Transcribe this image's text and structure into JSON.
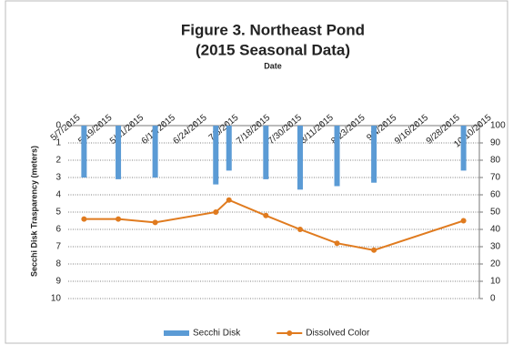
{
  "chart_data": {
    "type": "combo",
    "title": "Figure 3. Northeast Pond",
    "subtitle": "(2015 Seasonal Data)",
    "x_label": "Date",
    "y_label": "Secchi Disk Trasparency (meters)",
    "x": [
      "5/13/2015",
      "5/26/2015",
      "6/9/2015",
      "7/2/2015",
      "7/7/2015",
      "7/21/2015",
      "8/3/2015",
      "8/17/2015",
      "8/31/2015",
      "10/4/2015"
    ],
    "xlim": [
      "5/7/2015",
      "10/10/2015"
    ],
    "xticks": [
      "5/7/2015",
      "5/19/2015",
      "5/31/2015",
      "6/12/2015",
      "6/24/2015",
      "7/6/2015",
      "7/18/2015",
      "7/30/2015",
      "8/11/2015",
      "8/23/2015",
      "9/4/2015",
      "9/16/2015",
      "9/28/2015",
      "10/10/2015"
    ],
    "ylim": [
      0,
      10
    ],
    "y_reversed": true,
    "yticks": [
      0,
      1,
      2,
      3,
      4,
      5,
      6,
      7,
      8,
      9,
      10
    ],
    "y2lim": [
      0,
      100
    ],
    "y2ticks": [
      0,
      10,
      20,
      30,
      40,
      50,
      60,
      70,
      80,
      90,
      100
    ],
    "grid": true,
    "legend": "bottom",
    "series": [
      {
        "name": "Secchi Disk",
        "type": "bar",
        "color": "#5b9bd5",
        "values": [
          3.0,
          3.1,
          3.0,
          3.4,
          2.6,
          3.1,
          3.7,
          3.5,
          3.3,
          2.6
        ]
      },
      {
        "name": "Dissolved Color",
        "type": "line",
        "axis": "y2",
        "color": "#e07b1f",
        "values": [
          46,
          46,
          44,
          50,
          57,
          48,
          40,
          32,
          28,
          45
        ]
      }
    ]
  }
}
